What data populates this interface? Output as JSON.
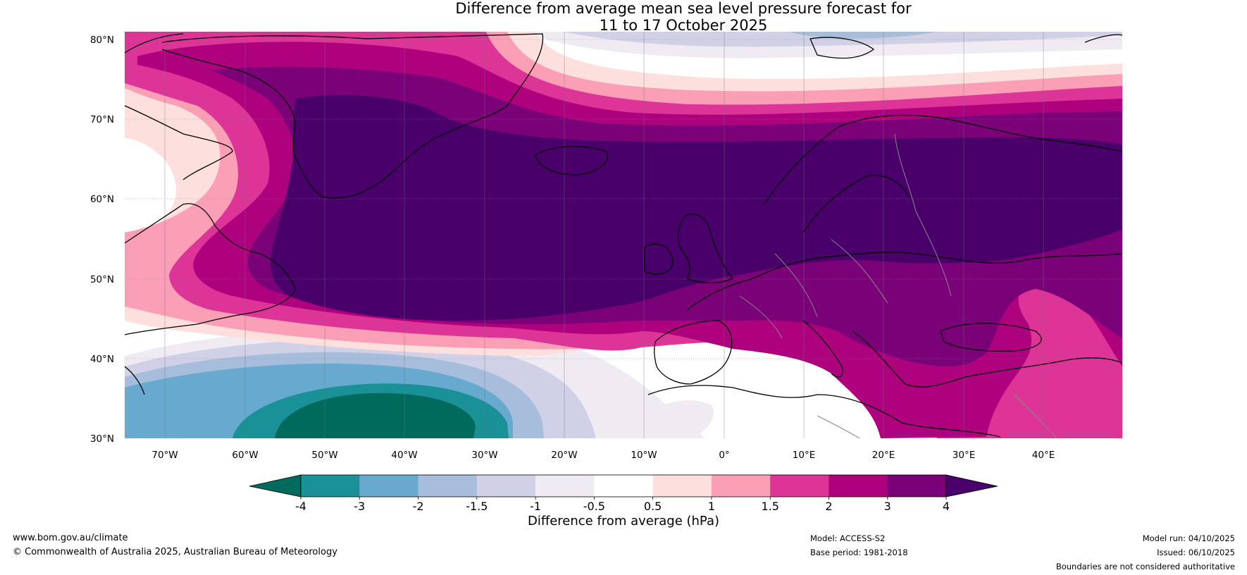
{
  "title_line1": "Difference from average mean sea level pressure forecast for",
  "title_line2": "11 to 17 October 2025",
  "lat_labels": [
    "80°N",
    "70°N",
    "60°N",
    "50°N",
    "40°N",
    "30°N"
  ],
  "lon_labels": [
    "70°W",
    "60°W",
    "50°W",
    "40°W",
    "30°W",
    "20°W",
    "10°W",
    "0°",
    "10°E",
    "20°E",
    "30°E",
    "40°E"
  ],
  "colorbar": {
    "label": "Difference from average (hPa)",
    "ticks": [
      "-4",
      "-3",
      "-2",
      "-1.5",
      "-1",
      "-0.5",
      "0.5",
      "1",
      "1.5",
      "2",
      "3",
      "4"
    ],
    "colors": [
      "#006b5c",
      "#1a9197",
      "#67a9cf",
      "#a6bddb",
      "#d0d1e6",
      "#f0ebf3",
      "#ffffff",
      "#fde0dd",
      "#fa9fb5",
      "#dd3497",
      "#ae017e",
      "#7a0177",
      "#49006a"
    ]
  },
  "footer": {
    "website": "www.bom.gov.au/climate",
    "copyright": "© Commonwealth of Australia 2025, Australian Bureau of Meteorology",
    "model": "Model: ACCESS-S2",
    "base_period": "Base period: 1981-2018",
    "model_run": "Model run: 04/10/2025",
    "issued": "Issued: 06/10/2025",
    "disclaimer": "Boundaries are not considered authoritative"
  }
}
